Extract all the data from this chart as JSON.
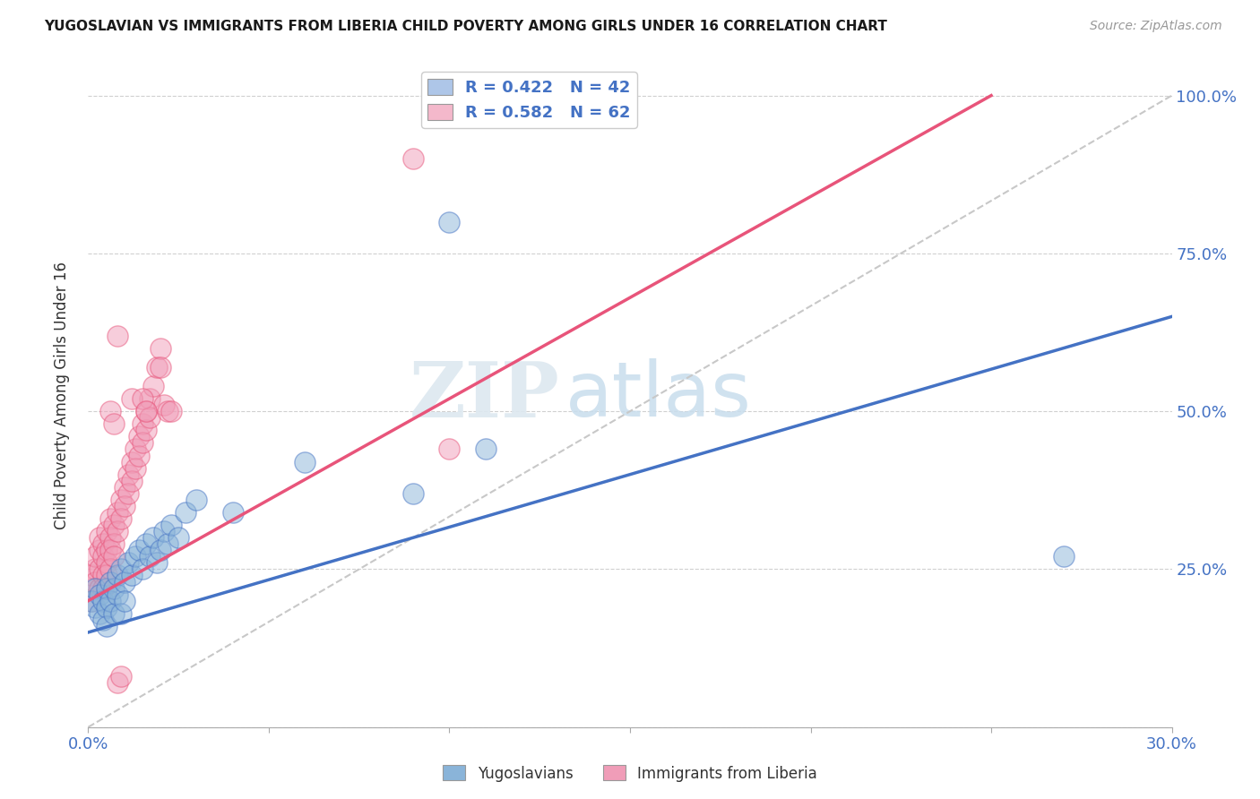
{
  "title": "YUGOSLAVIAN VS IMMIGRANTS FROM LIBERIA CHILD POVERTY AMONG GIRLS UNDER 16 CORRELATION CHART",
  "source": "Source: ZipAtlas.com",
  "ylabel": "Child Poverty Among Girls Under 16",
  "x_min": 0.0,
  "x_max": 0.3,
  "y_min": 0.0,
  "y_max": 1.05,
  "x_ticks": [
    0.0,
    0.05,
    0.1,
    0.15,
    0.2,
    0.25,
    0.3
  ],
  "y_ticks": [
    0.0,
    0.25,
    0.5,
    0.75,
    1.0
  ],
  "y_tick_labels": [
    "",
    "25.0%",
    "50.0%",
    "75.0%",
    "100.0%"
  ],
  "legend_entries": [
    {
      "label": "R = 0.422   N = 42",
      "color": "#aec6e8"
    },
    {
      "label": "R = 0.582   N = 62",
      "color": "#f4b8cb"
    }
  ],
  "blue_color": "#8ab4d9",
  "pink_color": "#f09db8",
  "blue_line_color": "#4472c4",
  "pink_line_color": "#e8547a",
  "diagonal_color": "#c8c8c8",
  "watermark_zip": "ZIP",
  "watermark_atlas": "atlas",
  "blue_line_x0": 0.0,
  "blue_line_y0": 0.15,
  "blue_line_x1": 0.3,
  "blue_line_y1": 0.65,
  "pink_line_x0": 0.0,
  "pink_line_y0": 0.2,
  "pink_line_x1": 0.25,
  "pink_line_y1": 1.0,
  "yug_data": [
    [
      0.001,
      0.2
    ],
    [
      0.002,
      0.22
    ],
    [
      0.002,
      0.19
    ],
    [
      0.003,
      0.21
    ],
    [
      0.003,
      0.18
    ],
    [
      0.004,
      0.2
    ],
    [
      0.004,
      0.17
    ],
    [
      0.005,
      0.22
    ],
    [
      0.005,
      0.19
    ],
    [
      0.005,
      0.16
    ],
    [
      0.006,
      0.23
    ],
    [
      0.006,
      0.2
    ],
    [
      0.007,
      0.22
    ],
    [
      0.007,
      0.18
    ],
    [
      0.008,
      0.24
    ],
    [
      0.008,
      0.21
    ],
    [
      0.009,
      0.25
    ],
    [
      0.009,
      0.18
    ],
    [
      0.01,
      0.23
    ],
    [
      0.01,
      0.2
    ],
    [
      0.011,
      0.26
    ],
    [
      0.012,
      0.24
    ],
    [
      0.013,
      0.27
    ],
    [
      0.014,
      0.28
    ],
    [
      0.015,
      0.25
    ],
    [
      0.016,
      0.29
    ],
    [
      0.017,
      0.27
    ],
    [
      0.018,
      0.3
    ],
    [
      0.019,
      0.26
    ],
    [
      0.02,
      0.28
    ],
    [
      0.021,
      0.31
    ],
    [
      0.022,
      0.29
    ],
    [
      0.023,
      0.32
    ],
    [
      0.025,
      0.3
    ],
    [
      0.027,
      0.34
    ],
    [
      0.03,
      0.36
    ],
    [
      0.04,
      0.34
    ],
    [
      0.06,
      0.42
    ],
    [
      0.09,
      0.37
    ],
    [
      0.1,
      0.8
    ],
    [
      0.11,
      0.44
    ],
    [
      0.27,
      0.27
    ]
  ],
  "lib_data": [
    [
      0.001,
      0.22
    ],
    [
      0.001,
      0.24
    ],
    [
      0.001,
      0.2
    ],
    [
      0.002,
      0.25
    ],
    [
      0.002,
      0.27
    ],
    [
      0.002,
      0.23
    ],
    [
      0.003,
      0.28
    ],
    [
      0.003,
      0.25
    ],
    [
      0.003,
      0.22
    ],
    [
      0.003,
      0.3
    ],
    [
      0.004,
      0.29
    ],
    [
      0.004,
      0.27
    ],
    [
      0.004,
      0.24
    ],
    [
      0.004,
      0.22
    ],
    [
      0.005,
      0.31
    ],
    [
      0.005,
      0.28
    ],
    [
      0.005,
      0.26
    ],
    [
      0.005,
      0.24
    ],
    [
      0.006,
      0.33
    ],
    [
      0.006,
      0.3
    ],
    [
      0.006,
      0.28
    ],
    [
      0.006,
      0.25
    ],
    [
      0.007,
      0.32
    ],
    [
      0.007,
      0.29
    ],
    [
      0.007,
      0.27
    ],
    [
      0.008,
      0.34
    ],
    [
      0.008,
      0.31
    ],
    [
      0.009,
      0.36
    ],
    [
      0.009,
      0.33
    ],
    [
      0.01,
      0.38
    ],
    [
      0.01,
      0.35
    ],
    [
      0.011,
      0.4
    ],
    [
      0.011,
      0.37
    ],
    [
      0.012,
      0.42
    ],
    [
      0.012,
      0.39
    ],
    [
      0.013,
      0.44
    ],
    [
      0.013,
      0.41
    ],
    [
      0.014,
      0.46
    ],
    [
      0.014,
      0.43
    ],
    [
      0.015,
      0.48
    ],
    [
      0.015,
      0.45
    ],
    [
      0.016,
      0.5
    ],
    [
      0.016,
      0.47
    ],
    [
      0.017,
      0.52
    ],
    [
      0.017,
      0.49
    ],
    [
      0.018,
      0.54
    ],
    [
      0.019,
      0.57
    ],
    [
      0.02,
      0.6
    ],
    [
      0.02,
      0.57
    ],
    [
      0.021,
      0.51
    ],
    [
      0.022,
      0.5
    ],
    [
      0.023,
      0.5
    ],
    [
      0.008,
      0.62
    ],
    [
      0.012,
      0.52
    ],
    [
      0.015,
      0.52
    ],
    [
      0.016,
      0.5
    ],
    [
      0.006,
      0.5
    ],
    [
      0.007,
      0.48
    ],
    [
      0.008,
      0.07
    ],
    [
      0.009,
      0.08
    ],
    [
      0.09,
      0.9
    ],
    [
      0.1,
      0.44
    ]
  ]
}
